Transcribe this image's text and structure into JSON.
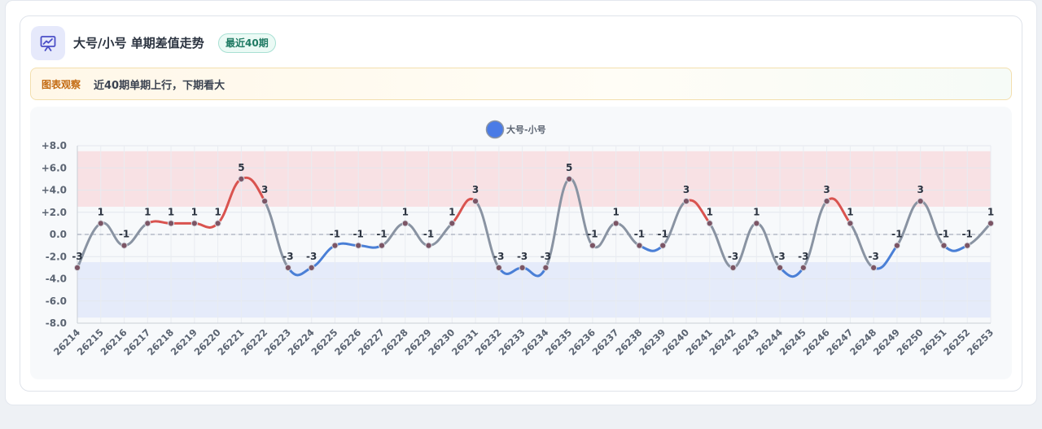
{
  "header": {
    "title": "大号/小号 单期差值走势",
    "badge": "最近40期"
  },
  "observation": {
    "label": "图表观察",
    "text": "近40期单期上行，下期看大"
  },
  "chart_data": {
    "type": "line",
    "title": "",
    "xlabel": "",
    "ylabel": "",
    "legend": {
      "position": "top-center",
      "entries": [
        "大号-小号"
      ]
    },
    "ylim": [
      -8,
      8
    ],
    "y_ticks": [
      "+8.0",
      "+6.0",
      "+4.0",
      "+2.0",
      "0.0",
      "-2.0",
      "-4.0",
      "-6.0",
      "-8.0"
    ],
    "y_tick_values": [
      8,
      6,
      4,
      2,
      0,
      -2,
      -4,
      -6,
      -8
    ],
    "bands": [
      {
        "from": 2.5,
        "to": 7.5,
        "color": "#f8e1e4"
      },
      {
        "from": -7.5,
        "to": -2.5,
        "color": "#e5ebfa"
      }
    ],
    "zero_line": true,
    "grid": true,
    "colors": {
      "line": "#8993a2",
      "up": "#d9534f",
      "down": "#4a7fd6",
      "point": "#7b5565",
      "legend": "#4a7be6"
    },
    "x": [
      "26214",
      "26215",
      "26216",
      "26217",
      "26218",
      "26219",
      "26220",
      "26221",
      "26222",
      "26223",
      "26224",
      "26225",
      "26226",
      "26227",
      "26228",
      "26229",
      "26230",
      "26231",
      "26232",
      "26233",
      "26234",
      "26235",
      "26236",
      "26237",
      "26238",
      "26239",
      "26240",
      "26241",
      "26242",
      "26243",
      "26244",
      "26245",
      "26246",
      "26247",
      "26248",
      "26249",
      "26250",
      "26251",
      "26252",
      "26253"
    ],
    "series": [
      {
        "name": "大号-小号",
        "values": [
          -3,
          1,
          -1,
          1,
          1,
          1,
          1,
          5,
          3,
          -3,
          -3,
          -1,
          -1,
          -1,
          1,
          -1,
          1,
          3,
          -3,
          -3,
          -3,
          5,
          -1,
          1,
          -1,
          -1,
          3,
          1,
          -3,
          1,
          -3,
          -3,
          3,
          1,
          -3,
          -1,
          3,
          -1,
          -1,
          1
        ],
        "labels": [
          "-3",
          "1",
          "-1",
          "1",
          "1",
          "1",
          "1",
          "5",
          "3",
          "-3",
          "-3",
          "-1",
          "-1",
          "-1",
          "1",
          "-1",
          "1",
          "3",
          "-3",
          "-3",
          "-3",
          "5",
          "-1",
          "1",
          "-1",
          "-1",
          "3",
          "1",
          "-3",
          "1",
          "-3",
          "-3",
          "3",
          "1",
          "-3",
          "-1",
          "3",
          "-1",
          "-1",
          "1"
        ]
      }
    ]
  }
}
